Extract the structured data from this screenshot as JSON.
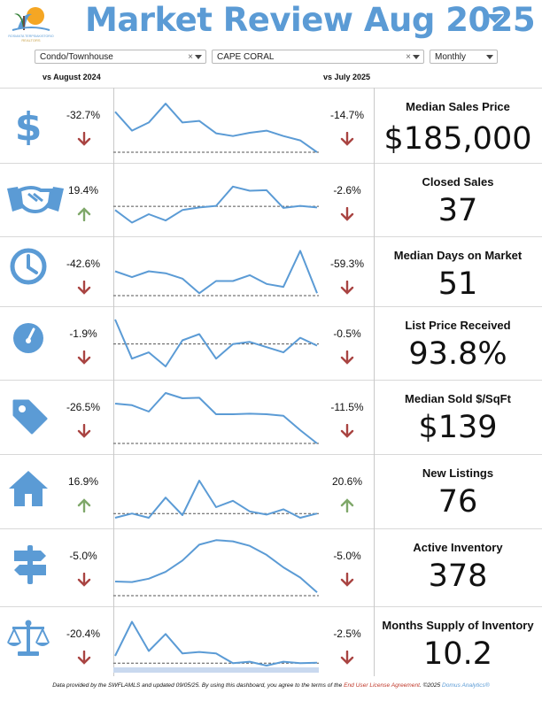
{
  "header": {
    "title": "Market Review  Aug 2025",
    "logo_text_line1": "ROSIANTA TERPSIAKISTORIO",
    "logo_text_line2": "REALTORS"
  },
  "filters": {
    "property_type": "Condo/Townhouse",
    "city": "CAPE CORAL",
    "period": "Monthly"
  },
  "column_headers": {
    "yoy": "vs August 2024",
    "mom": "vs July 2025"
  },
  "colors": {
    "accent": "#5b9bd5",
    "up": "#7fa86a",
    "down": "#a94442",
    "baseline": "#555555"
  },
  "metrics": [
    {
      "label": "Median Sales Price",
      "value": "$185,000",
      "icon": "dollar-icon",
      "yoy": "-32.7%",
      "yoy_dir": "down",
      "mom": "-14.7%",
      "mom_dir": "down",
      "trend": [
        0.75,
        0.4,
        0.55,
        0.9,
        0.55,
        0.58,
        0.35,
        0.3,
        0.36,
        0.4,
        0.3,
        0.22,
        0.0
      ],
      "baseline": 0.0
    },
    {
      "label": "Closed Sales",
      "value": "37",
      "icon": "handshake-icon",
      "yoy": "19.4%",
      "yoy_dir": "up",
      "mom": "-2.6%",
      "mom_dir": "down",
      "trend": [
        0.3,
        0.06,
        0.22,
        0.1,
        0.3,
        0.35,
        0.38,
        0.75,
        0.67,
        0.68,
        0.34,
        0.38,
        0.35
      ],
      "baseline": 0.37
    },
    {
      "label": "Median Days on Market",
      "value": "51",
      "icon": "clock-icon",
      "yoy": "-42.6%",
      "yoy_dir": "down",
      "mom": "-59.3%",
      "mom_dir": "down",
      "trend": [
        0.5,
        0.38,
        0.5,
        0.46,
        0.35,
        0.05,
        0.3,
        0.3,
        0.42,
        0.24,
        0.18,
        0.92,
        0.05
      ],
      "baseline": 0.0
    },
    {
      "label": "List Price Received",
      "value": "93.8%",
      "icon": "gauge-icon",
      "yoy": "-1.9%",
      "yoy_dir": "down",
      "mom": "-0.5%",
      "mom_dir": "down",
      "trend": [
        0.95,
        0.2,
        0.32,
        0.05,
        0.55,
        0.67,
        0.2,
        0.48,
        0.52,
        0.42,
        0.32,
        0.6,
        0.45
      ],
      "baseline": 0.48
    },
    {
      "label": "Median Sold $/SqFt",
      "value": "$139",
      "icon": "tag-icon",
      "yoy": "-26.5%",
      "yoy_dir": "down",
      "mom": "-11.5%",
      "mom_dir": "down",
      "trend": [
        0.75,
        0.72,
        0.6,
        0.95,
        0.85,
        0.86,
        0.55,
        0.55,
        0.56,
        0.55,
        0.52,
        0.25,
        0.0
      ],
      "baseline": 0.0
    },
    {
      "label": "New Listings",
      "value": "76",
      "icon": "house-icon",
      "yoy": "16.9%",
      "yoy_dir": "up",
      "mom": "20.6%",
      "mom_dir": "up",
      "trend": [
        0.0,
        0.08,
        0.0,
        0.38,
        0.05,
        0.7,
        0.2,
        0.32,
        0.12,
        0.06,
        0.16,
        0.0,
        0.08
      ],
      "baseline": 0.08
    },
    {
      "label": "Active Inventory",
      "value": "378",
      "icon": "signpost-icon",
      "yoy": "-5.0%",
      "yoy_dir": "down",
      "mom": "-5.0%",
      "mom_dir": "down",
      "trend": [
        0.25,
        0.24,
        0.3,
        0.42,
        0.62,
        0.9,
        0.98,
        0.96,
        0.88,
        0.72,
        0.5,
        0.32,
        0.06
      ],
      "baseline": 0.0
    },
    {
      "label": "Months Supply of Inventory",
      "value": "10.2",
      "icon": "scale-icon",
      "yoy": "-20.4%",
      "yoy_dir": "down",
      "mom": "-2.5%",
      "mom_dir": "down",
      "trend": [
        0.2,
        0.9,
        0.3,
        0.65,
        0.25,
        0.28,
        0.25,
        0.05,
        0.08,
        0.0,
        0.08,
        0.05,
        0.06
      ],
      "baseline": 0.05
    }
  ],
  "footer": {
    "prefix": "Data provided by the SWFLAMLS and updated 09/05/25.  By using this dashboard, you agree to the terms of the ",
    "link": "End User License Agreement",
    "mid": ".  ©2025 ",
    "brand": "Domus Analytics®"
  }
}
